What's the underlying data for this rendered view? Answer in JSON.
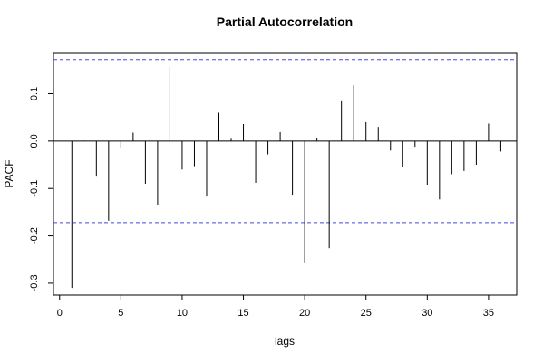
{
  "chart_data": {
    "type": "bar",
    "title": "Partial Autocorrelation",
    "xlabel": "lags",
    "ylabel": "PACF",
    "xlim": [
      -0.5,
      37.3
    ],
    "ylim": [
      -0.325,
      0.185
    ],
    "xticks": [
      0,
      5,
      10,
      15,
      20,
      25,
      30,
      35
    ],
    "yticks": [
      -0.3,
      -0.2,
      -0.1,
      0.0,
      0.1
    ],
    "ytick_labels": [
      "-0.3",
      "-0.2",
      "-0.1",
      "0.0",
      "0.1"
    ],
    "confidence_bound": 0.172,
    "ci_color": "#4646e6",
    "grid": false,
    "x": [
      1,
      2,
      3,
      4,
      5,
      6,
      7,
      8,
      9,
      10,
      11,
      12,
      13,
      14,
      15,
      16,
      17,
      18,
      19,
      20,
      21,
      22,
      23,
      24,
      25,
      26,
      27,
      28,
      29,
      30,
      31,
      32,
      33,
      34,
      35,
      36
    ],
    "values": [
      -0.31,
      0.001,
      -0.075,
      -0.168,
      -0.015,
      0.018,
      -0.09,
      -0.135,
      0.157,
      -0.06,
      -0.053,
      -0.117,
      0.06,
      0.005,
      0.036,
      -0.088,
      -0.028,
      0.019,
      -0.115,
      -0.258,
      0.007,
      -0.226,
      0.084,
      0.118,
      0.04,
      0.03,
      -0.02,
      -0.055,
      -0.012,
      -0.092,
      -0.123,
      -0.07,
      -0.063,
      -0.05,
      0.037,
      -0.022
    ]
  }
}
